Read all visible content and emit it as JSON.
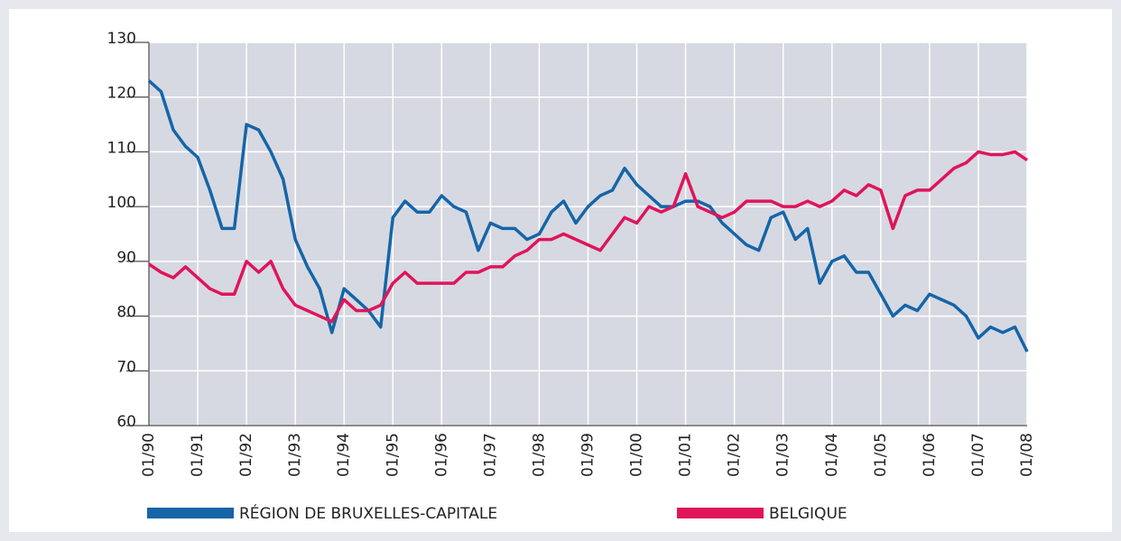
{
  "chart_data": {
    "type": "line",
    "x": [
      1990,
      1990.25,
      1990.5,
      1990.75,
      1991,
      1991.25,
      1991.5,
      1991.75,
      1992,
      1992.25,
      1992.5,
      1992.75,
      1993,
      1993.25,
      1993.5,
      1993.75,
      1994,
      1994.25,
      1994.5,
      1994.75,
      1995,
      1995.25,
      1995.5,
      1995.75,
      1996,
      1996.25,
      1996.5,
      1996.75,
      1997,
      1997.25,
      1997.5,
      1997.75,
      1998,
      1998.25,
      1998.5,
      1998.75,
      1999,
      1999.25,
      1999.5,
      1999.75,
      2000,
      2000.25,
      2000.5,
      2000.75,
      2001,
      2001.25,
      2001.5,
      2001.75,
      2002,
      2002.25,
      2002.5,
      2002.75,
      2003,
      2003.25,
      2003.5,
      2003.75,
      2004,
      2004.25,
      2004.5,
      2004.75,
      2005,
      2005.25,
      2005.5,
      2005.75,
      2006,
      2006.25,
      2006.5,
      2006.75,
      2007,
      2007.25,
      2007.5,
      2007.75,
      2008
    ],
    "series": [
      {
        "name": "RÉGION DE BRUXELLES-CAPITALE",
        "color": "#1565a8",
        "values": [
          123,
          121,
          114,
          111,
          109,
          103,
          96,
          96,
          115,
          114,
          110,
          105,
          94,
          89,
          85,
          77,
          85,
          83,
          81,
          78,
          98,
          101,
          99,
          99,
          102,
          100,
          99,
          92,
          97,
          96,
          96,
          94,
          95,
          99,
          101,
          97,
          100,
          102,
          103,
          107,
          104,
          102,
          100,
          100,
          101,
          101,
          100,
          97,
          95,
          93,
          92,
          98,
          99,
          94,
          96,
          86,
          90,
          91,
          88,
          88,
          84,
          80,
          82,
          81,
          84,
          83,
          82,
          80,
          76,
          78,
          77,
          78,
          73.5
        ]
      },
      {
        "name": "BELGIQUE",
        "color": "#e0145a",
        "values": [
          89.5,
          88,
          87,
          89,
          87,
          85,
          84,
          84,
          90,
          88,
          90,
          85,
          82,
          81,
          80,
          79,
          83,
          81,
          81,
          82,
          86,
          88,
          86,
          86,
          86,
          86,
          88,
          88,
          89,
          89,
          91,
          92,
          94,
          94,
          95,
          94,
          93,
          92,
          95,
          98,
          97,
          100,
          99,
          100,
          106,
          100,
          99,
          98,
          99,
          101,
          101,
          101,
          100,
          100,
          101,
          100,
          101,
          103,
          102,
          104,
          103,
          96,
          102,
          103,
          103,
          105,
          107,
          108,
          110,
          109.5,
          109.5,
          110,
          108.5
        ]
      }
    ],
    "xlim": [
      1990,
      2008
    ],
    "xticks": [
      {
        "value": 1990,
        "label": "01/90"
      },
      {
        "value": 1991,
        "label": "01/91"
      },
      {
        "value": 1992,
        "label": "01/92"
      },
      {
        "value": 1993,
        "label": "01/93"
      },
      {
        "value": 1994,
        "label": "01/94"
      },
      {
        "value": 1995,
        "label": "01/95"
      },
      {
        "value": 1996,
        "label": "01/96"
      },
      {
        "value": 1997,
        "label": "01/97"
      },
      {
        "value": 1998,
        "label": "01/98"
      },
      {
        "value": 1999,
        "label": "01/99"
      },
      {
        "value": 2000,
        "label": "01/00"
      },
      {
        "value": 2001,
        "label": "01/01"
      },
      {
        "value": 2002,
        "label": "01/02"
      },
      {
        "value": 2003,
        "label": "01/03"
      },
      {
        "value": 2004,
        "label": "01/04"
      },
      {
        "value": 2005,
        "label": "01/05"
      },
      {
        "value": 2006,
        "label": "01/06"
      },
      {
        "value": 2007,
        "label": "01/07"
      },
      {
        "value": 2008,
        "label": "01/08"
      }
    ],
    "ylim": [
      60,
      130
    ],
    "yticks": [
      60,
      70,
      80,
      90,
      100,
      110,
      120,
      130
    ],
    "grid": true
  }
}
